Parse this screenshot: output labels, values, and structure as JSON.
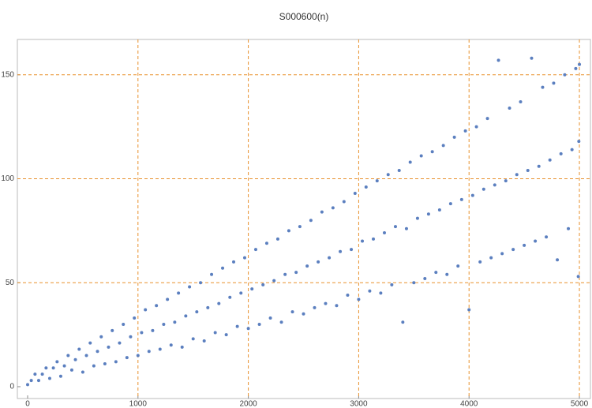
{
  "chart_data": {
    "type": "scatter",
    "title": "S000600(n)",
    "xlim": [
      -93,
      5100
    ],
    "ylim": [
      -5.7,
      167
    ],
    "xticks": [
      0,
      1000,
      2000,
      3000,
      4000,
      5000
    ],
    "yticks": [
      0,
      50,
      100,
      150
    ],
    "grid": true,
    "grid_color": "#e8912d",
    "series": [
      {
        "color": "#5b7fbf",
        "x": [
          0,
          33,
          67,
          100,
          133,
          167,
          200,
          233,
          267,
          300,
          333,
          367,
          400,
          433,
          467,
          500,
          533,
          567,
          600,
          633,
          667,
          700,
          733,
          767,
          800,
          833,
          867,
          900,
          933,
          967,
          1000,
          1033,
          1067,
          1100,
          1133,
          1167,
          1200,
          1233,
          1267,
          1300,
          1333,
          1367,
          1400,
          1433,
          1467,
          1500,
          1533,
          1567,
          1600,
          1633,
          1667,
          1700,
          1733,
          1767,
          1800,
          1833,
          1867,
          1900,
          1933,
          1967,
          2000,
          2033,
          2067,
          2100,
          2133,
          2167,
          2200,
          2233,
          2267,
          2300,
          2333,
          2367,
          2400,
          2433,
          2467,
          2500,
          2533,
          2567,
          2600,
          2633,
          2667,
          2700,
          2733,
          2767,
          2800,
          2833,
          2867,
          2900,
          2933,
          2967,
          3000,
          3033,
          3067,
          3100,
          3133,
          3167,
          3200,
          3233,
          3267,
          3300,
          3333,
          3367,
          3400,
          3433,
          3467,
          3500,
          3533,
          3567,
          3600,
          3633,
          3667,
          3700,
          3733,
          3767,
          3800,
          3833,
          3867,
          3900,
          3933,
          3967,
          4000,
          4033,
          4067,
          4100,
          4133,
          4167,
          4200,
          4233,
          4267,
          4300,
          4333,
          4367,
          4400,
          4433,
          4467,
          4500,
          4533,
          4567,
          4600,
          4633,
          4667,
          4700,
          4733,
          4767,
          4800,
          4833,
          4867,
          4900,
          4933,
          4967,
          4990,
          4995,
          5000
        ],
        "values": [
          1,
          3,
          6,
          3,
          6,
          9,
          4,
          9,
          12,
          5,
          10,
          15,
          8,
          13,
          18,
          7,
          15,
          21,
          10,
          17,
          24,
          11,
          19,
          27,
          12,
          21,
          30,
          14,
          24,
          33,
          15,
          26,
          37,
          17,
          27,
          39,
          18,
          30,
          42,
          20,
          31,
          45,
          19,
          34,
          48,
          23,
          36,
          50,
          22,
          38,
          54,
          26,
          40,
          57,
          25,
          43,
          60,
          29,
          45,
          62,
          28,
          47,
          66,
          30,
          49,
          69,
          33,
          51,
          71,
          31,
          54,
          75,
          36,
          55,
          77,
          35,
          58,
          80,
          38,
          60,
          84,
          40,
          62,
          86,
          39,
          65,
          89,
          44,
          66,
          93,
          42,
          70,
          96,
          46,
          71,
          99,
          45,
          74,
          102,
          49,
          77,
          104,
          31,
          76,
          108,
          50,
          81,
          111,
          52,
          83,
          113,
          55,
          85,
          116,
          54,
          88,
          120,
          58,
          90,
          123,
          37,
          92,
          125,
          60,
          95,
          129,
          62,
          97,
          157,
          64,
          99,
          134,
          66,
          102,
          137,
          68,
          104,
          158,
          70,
          106,
          144,
          72,
          109,
          146,
          61,
          112,
          150,
          76,
          114,
          153,
          53,
          118,
          155
        ]
      }
    ]
  }
}
